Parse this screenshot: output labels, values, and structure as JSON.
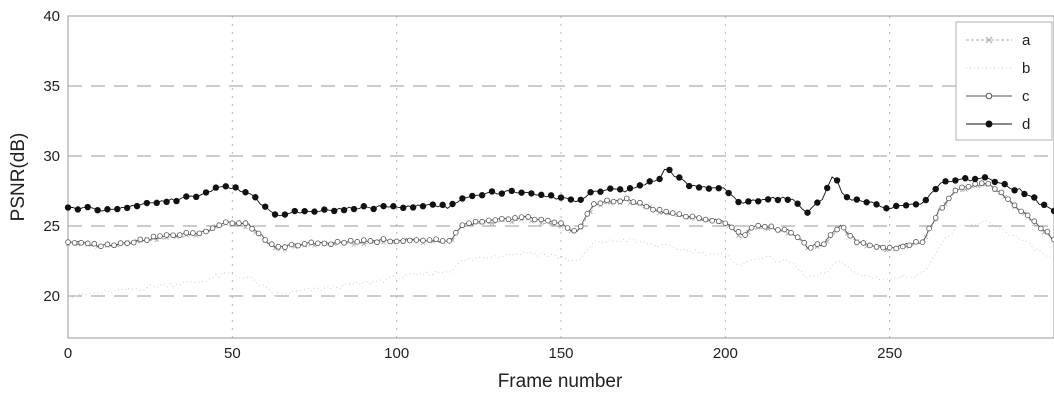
{
  "chart_data": {
    "type": "line",
    "xlabel": "Frame number",
    "ylabel": "PSNR(dB)",
    "xlim": [
      0,
      300
    ],
    "ylim": [
      17,
      40
    ],
    "xticks": [
      0,
      50,
      100,
      150,
      200,
      250
    ],
    "yticks": [
      20,
      25,
      30,
      35,
      40
    ],
    "grid": true,
    "legend_position": "top-right",
    "series": [
      {
        "name": "a",
        "color": "#aaaaaa",
        "marker": "x",
        "x": [
          0,
          10,
          20,
          30,
          40,
          48,
          55,
          63,
          70,
          80,
          90,
          100,
          110,
          116,
          120,
          130,
          140,
          150,
          155,
          160,
          170,
          180,
          190,
          200,
          205,
          210,
          220,
          225,
          230,
          235,
          240,
          250,
          260,
          265,
          270,
          280,
          290,
          300
        ],
        "y": [
          23.8,
          23.5,
          23.8,
          24.2,
          24.4,
          25.2,
          25.0,
          23.3,
          23.6,
          23.7,
          23.8,
          23.9,
          23.9,
          23.8,
          25.0,
          25.3,
          25.5,
          25.0,
          24.5,
          26.5,
          26.8,
          26.0,
          25.5,
          25.2,
          24.2,
          25.0,
          24.5,
          23.4,
          23.6,
          25.0,
          23.8,
          23.3,
          23.8,
          26.0,
          27.5,
          28.0,
          26.0,
          24.0
        ]
      },
      {
        "name": "b",
        "color": "#cccccc",
        "marker": "none",
        "x": [
          0,
          10,
          20,
          30,
          40,
          48,
          55,
          63,
          70,
          80,
          90,
          100,
          110,
          116,
          120,
          130,
          140,
          150,
          155,
          160,
          170,
          180,
          190,
          200,
          205,
          210,
          220,
          225,
          230,
          235,
          240,
          250,
          260,
          265,
          270,
          280,
          290,
          300
        ],
        "y": [
          20.0,
          20.2,
          20.5,
          20.8,
          21.0,
          21.6,
          21.3,
          20.1,
          20.3,
          20.6,
          20.9,
          21.3,
          21.6,
          21.8,
          22.5,
          22.9,
          23.1,
          22.8,
          22.4,
          23.8,
          24.0,
          23.6,
          23.2,
          22.9,
          22.2,
          22.8,
          22.4,
          21.3,
          21.5,
          22.6,
          21.5,
          21.2,
          21.6,
          23.5,
          24.8,
          25.3,
          24.0,
          22.5
        ]
      },
      {
        "name": "c",
        "color": "#555555",
        "marker": "open-circle",
        "x": [
          0,
          10,
          20,
          30,
          40,
          48,
          55,
          63,
          70,
          80,
          90,
          100,
          110,
          116,
          120,
          130,
          140,
          150,
          155,
          160,
          170,
          180,
          190,
          200,
          205,
          210,
          220,
          225,
          230,
          235,
          240,
          250,
          260,
          265,
          270,
          280,
          290,
          300
        ],
        "y": [
          23.9,
          23.6,
          23.9,
          24.3,
          24.5,
          25.3,
          25.1,
          23.4,
          23.7,
          23.8,
          23.9,
          24.0,
          24.0,
          23.9,
          25.1,
          25.4,
          25.6,
          25.1,
          24.6,
          26.6,
          26.9,
          26.1,
          25.6,
          25.3,
          24.3,
          25.1,
          24.6,
          23.5,
          23.7,
          25.1,
          23.9,
          23.4,
          23.9,
          26.1,
          27.6,
          28.1,
          26.1,
          24.1
        ]
      },
      {
        "name": "d",
        "color": "#111111",
        "marker": "filled-circle",
        "x": [
          0,
          10,
          20,
          30,
          40,
          48,
          55,
          63,
          70,
          80,
          90,
          100,
          110,
          116,
          120,
          130,
          140,
          150,
          155,
          160,
          170,
          180,
          182,
          185,
          190,
          200,
          205,
          210,
          220,
          225,
          230,
          233,
          235,
          240,
          250,
          260,
          265,
          270,
          280,
          290,
          300
        ],
        "y": [
          26.4,
          26.1,
          26.4,
          26.8,
          27.2,
          27.9,
          27.4,
          25.8,
          26.0,
          26.2,
          26.3,
          26.4,
          26.4,
          26.4,
          27.0,
          27.4,
          27.4,
          27.0,
          26.7,
          27.6,
          27.5,
          28.3,
          29.2,
          28.5,
          27.8,
          27.6,
          26.6,
          26.9,
          27.0,
          26.0,
          27.0,
          28.9,
          27.4,
          26.8,
          26.3,
          26.5,
          28.0,
          28.3,
          28.4,
          27.5,
          26.0
        ]
      }
    ]
  }
}
